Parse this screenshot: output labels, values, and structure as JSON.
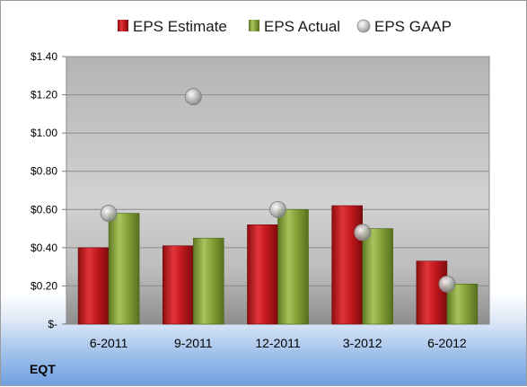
{
  "ticker": "EQT",
  "colors": {
    "estimate": "#c8171c",
    "actual": "#8aaa3e",
    "gaap": "#bdbdbd"
  },
  "chart_data": {
    "type": "bar",
    "categories": [
      "6-2011",
      "9-2011",
      "12-2011",
      "3-2012",
      "6-2012"
    ],
    "series": [
      {
        "name": "EPS Estimate",
        "values": [
          0.4,
          0.41,
          0.52,
          0.62,
          0.33
        ]
      },
      {
        "name": "EPS Actual",
        "values": [
          0.58,
          0.45,
          0.6,
          0.5,
          0.21
        ]
      },
      {
        "name": "EPS GAAP",
        "type": "scatter",
        "values": [
          0.58,
          1.19,
          0.6,
          0.48,
          0.21
        ]
      }
    ],
    "y_tick_labels": [
      "$-",
      "$0.20",
      "$0.40",
      "$0.60",
      "$0.80",
      "$1.00",
      "$1.20",
      "$1.40"
    ],
    "ylim": [
      0,
      1.4
    ],
    "grid": true,
    "legend_position": "top"
  }
}
